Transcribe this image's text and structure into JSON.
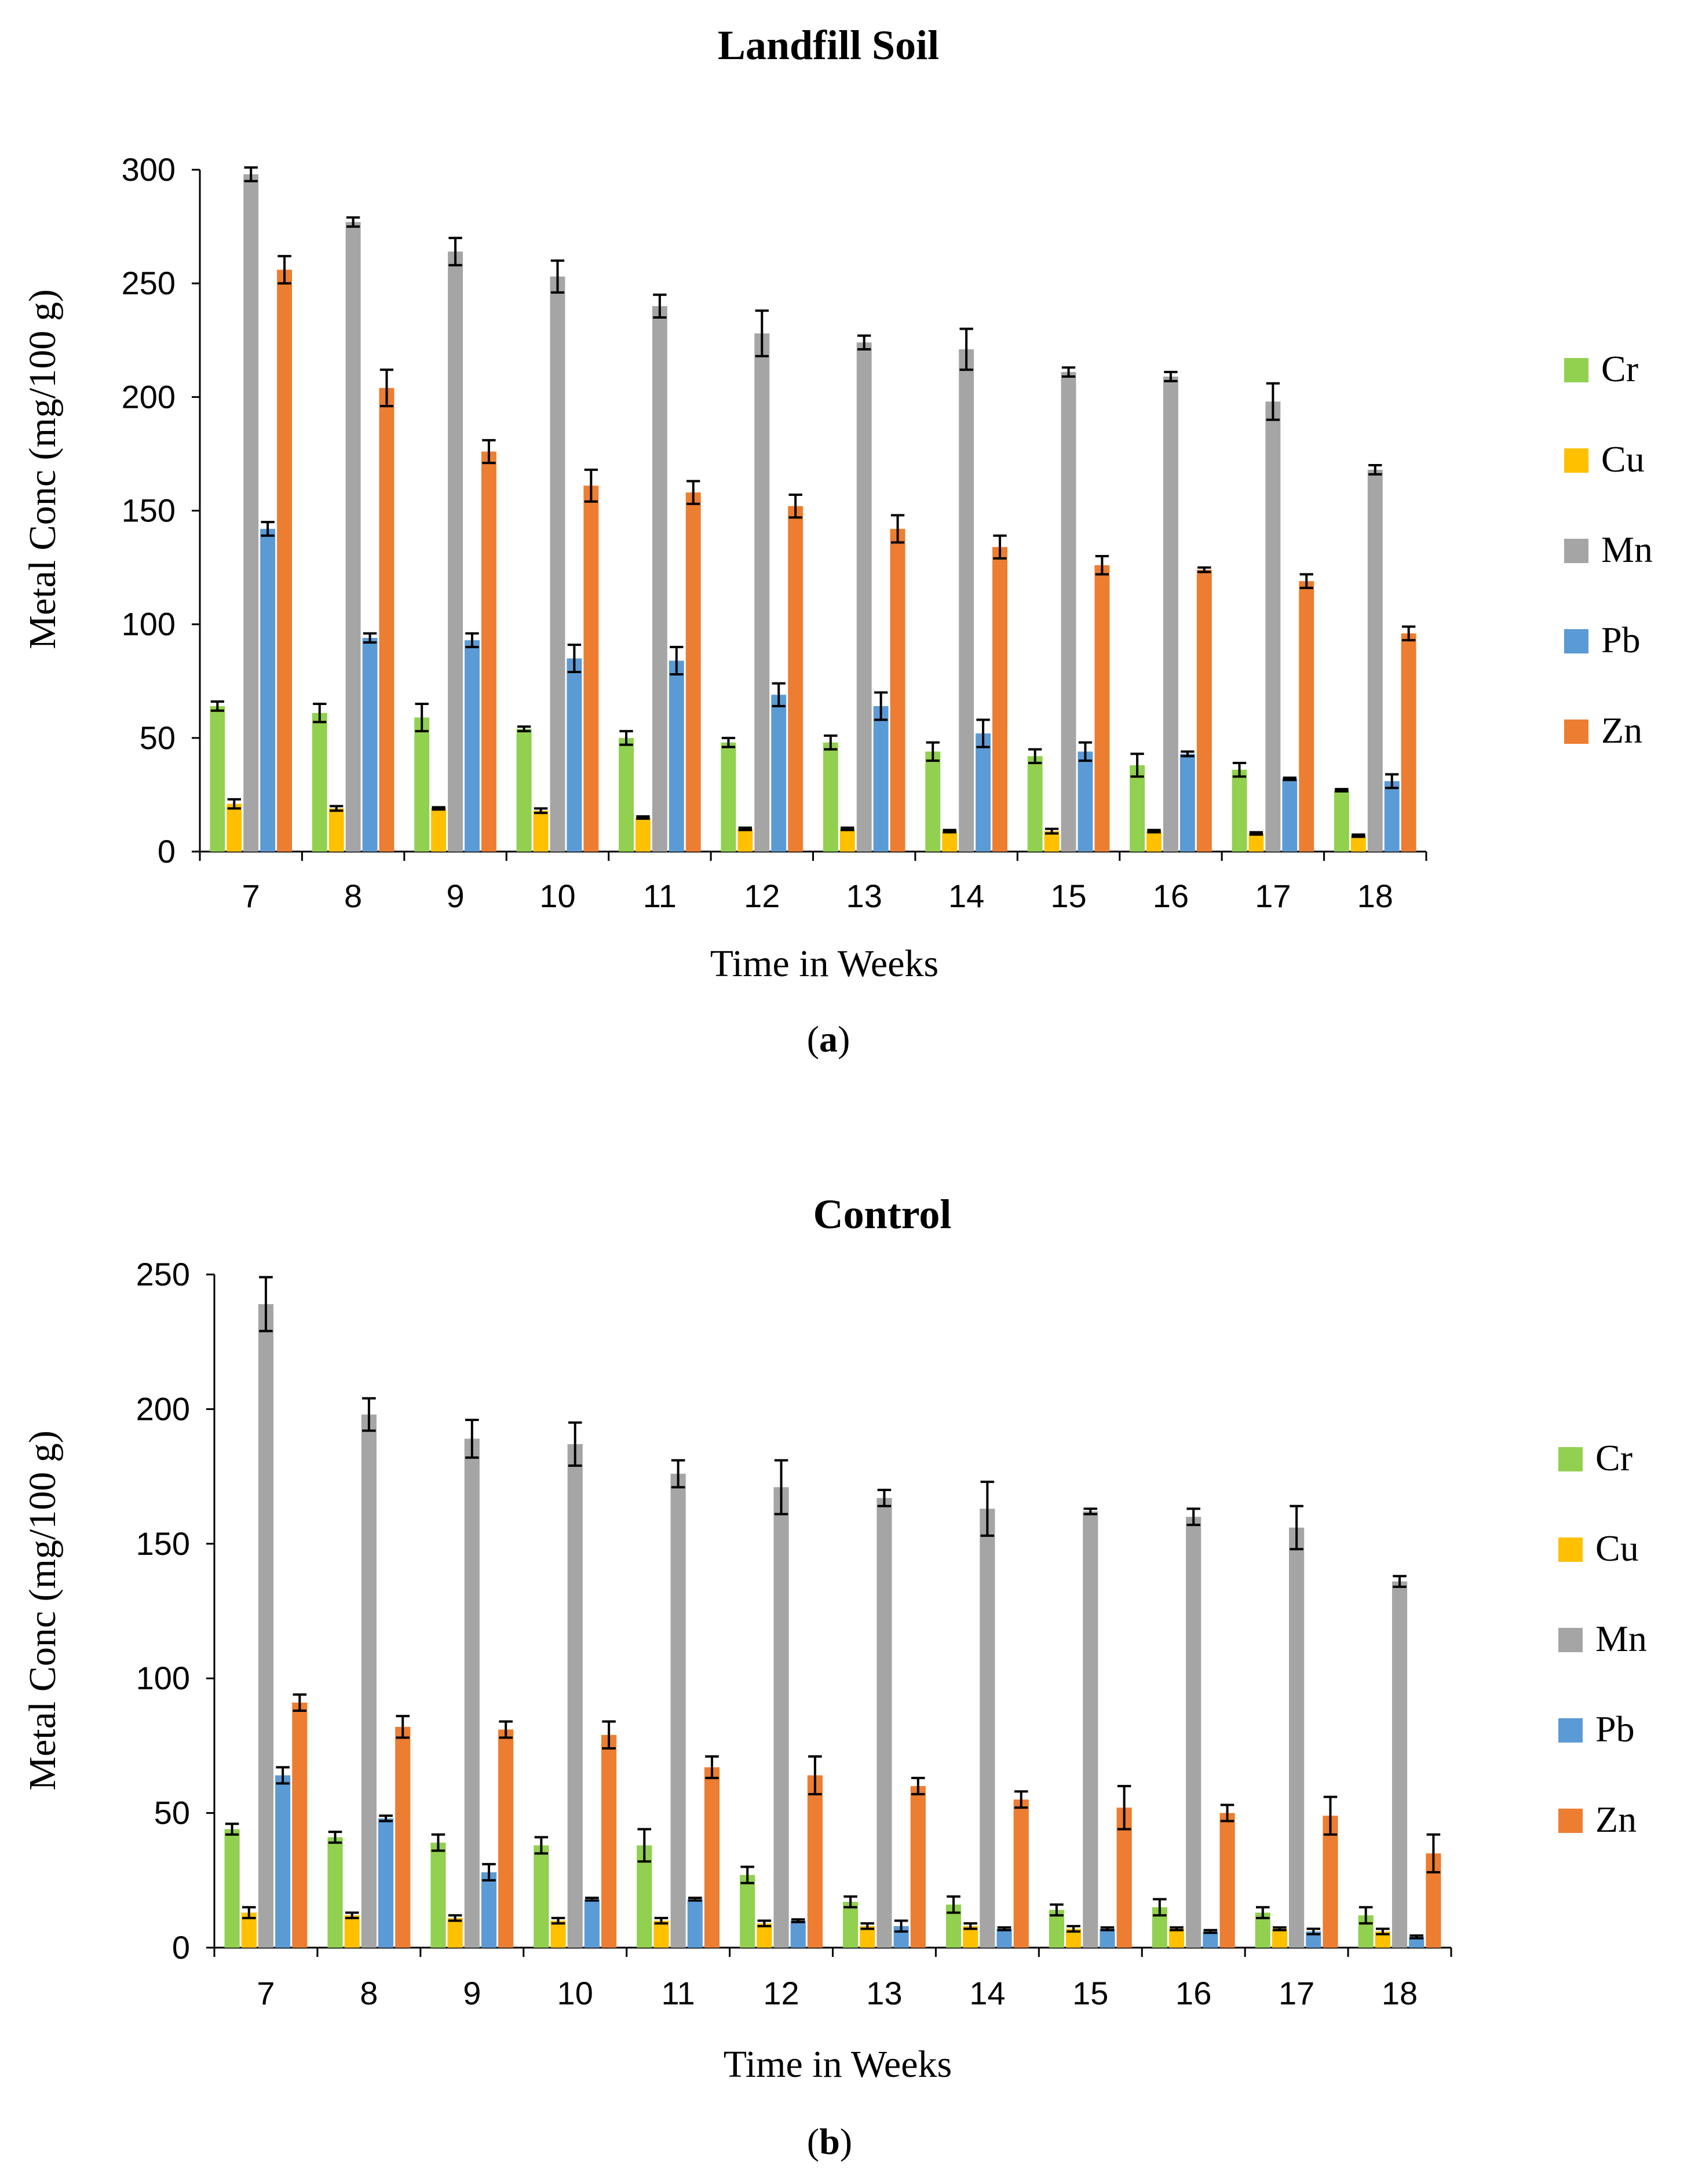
{
  "chart_data": [
    {
      "type": "bar",
      "panel_label": "a",
      "title": "Landfill Soil",
      "xlabel": "Time in Weeks",
      "ylabel": "Metal Conc (mg/100 g)",
      "ylim": [
        0,
        300
      ],
      "yticks": [
        0,
        50,
        100,
        150,
        200,
        250,
        300
      ],
      "categories": [
        "7",
        "8",
        "9",
        "10",
        "11",
        "12",
        "13",
        "14",
        "15",
        "16",
        "17",
        "18"
      ],
      "legend_position": "right",
      "series": [
        {
          "name": "Cr",
          "color": "#92D050",
          "values": [
            64,
            61,
            59,
            54,
            50,
            48,
            48,
            44,
            42,
            38,
            36,
            27
          ],
          "errors": [
            2,
            4,
            6,
            1,
            3,
            2,
            3,
            4,
            3,
            5,
            3,
            0.5
          ]
        },
        {
          "name": "Cu",
          "color": "#FFC000",
          "values": [
            21,
            19,
            19,
            18,
            15,
            10,
            10,
            9,
            9,
            9,
            8,
            7
          ],
          "errors": [
            2,
            1,
            0.5,
            1,
            0.5,
            0.5,
            0.5,
            0.5,
            1,
            0.5,
            0.5,
            0.5
          ]
        },
        {
          "name": "Mn",
          "color": "#A5A5A5",
          "values": [
            298,
            277,
            264,
            253,
            240,
            228,
            224,
            221,
            211,
            209,
            198,
            168
          ],
          "errors": [
            3,
            2,
            6,
            7,
            5,
            10,
            3,
            9,
            2,
            2,
            8,
            2
          ]
        },
        {
          "name": "Pb",
          "color": "#5B9BD5",
          "values": [
            142,
            94,
            93,
            85,
            84,
            69,
            64,
            52,
            44,
            43,
            32,
            31
          ],
          "errors": [
            3,
            2,
            3,
            6,
            6,
            5,
            6,
            6,
            4,
            1,
            0.5,
            3
          ]
        },
        {
          "name": "Zn",
          "color": "#ED7D31",
          "values": [
            256,
            204,
            176,
            161,
            158,
            152,
            142,
            134,
            126,
            124,
            119,
            96
          ],
          "errors": [
            6,
            8,
            5,
            7,
            5,
            5,
            6,
            5,
            4,
            1,
            3,
            3
          ]
        }
      ]
    },
    {
      "type": "bar",
      "panel_label": "b",
      "title": "Control",
      "xlabel": "Time in Weeks",
      "ylabel": "Metal Conc (mg/100 g)",
      "ylim": [
        0,
        250
      ],
      "yticks": [
        0,
        50,
        100,
        150,
        200,
        250
      ],
      "categories": [
        "7",
        "8",
        "9",
        "10",
        "11",
        "12",
        "13",
        "14",
        "15",
        "16",
        "17",
        "18"
      ],
      "legend_position": "right",
      "series": [
        {
          "name": "Cr",
          "color": "#92D050",
          "values": [
            44,
            41,
            39,
            38,
            38,
            27,
            17,
            16,
            14,
            15,
            13,
            12
          ],
          "errors": [
            2,
            2,
            3,
            3,
            6,
            3,
            2,
            3,
            2,
            3,
            2,
            3
          ]
        },
        {
          "name": "Cu",
          "color": "#FFC000",
          "values": [
            13,
            12,
            11,
            10,
            10,
            9,
            8,
            8,
            7,
            7,
            7,
            6
          ],
          "errors": [
            2,
            1,
            1,
            1,
            1,
            1,
            1,
            1,
            1,
            0.5,
            0.5,
            1
          ]
        },
        {
          "name": "Mn",
          "color": "#A5A5A5",
          "values": [
            239,
            198,
            189,
            187,
            176,
            171,
            167,
            163,
            162,
            160,
            156,
            136
          ],
          "errors": [
            10,
            6,
            7,
            8,
            5,
            10,
            3,
            10,
            1,
            3,
            8,
            2
          ]
        },
        {
          "name": "Pb",
          "color": "#5B9BD5",
          "values": [
            64,
            48,
            28,
            18,
            18,
            10,
            8,
            7,
            7,
            6,
            6,
            4
          ],
          "errors": [
            3,
            1,
            3,
            0.5,
            0.5,
            0.5,
            2,
            0.5,
            0.5,
            0.5,
            1,
            0.5
          ]
        },
        {
          "name": "Zn",
          "color": "#ED7D31",
          "values": [
            91,
            82,
            81,
            79,
            67,
            64,
            60,
            55,
            52,
            50,
            49,
            35
          ],
          "errors": [
            3,
            4,
            3,
            5,
            4,
            7,
            3,
            3,
            8,
            3,
            7,
            7
          ]
        }
      ]
    }
  ]
}
